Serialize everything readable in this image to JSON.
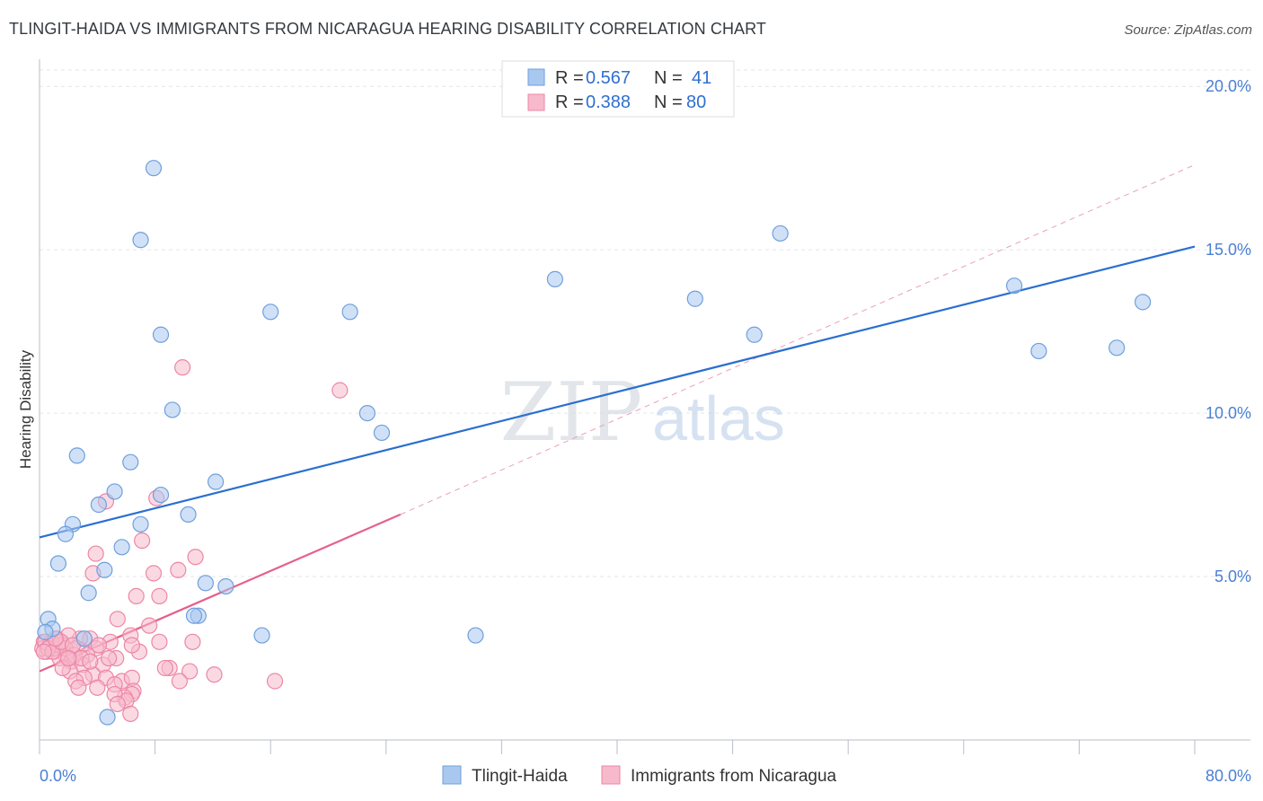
{
  "title": "TLINGIT-HAIDA VS IMMIGRANTS FROM NICARAGUA HEARING DISABILITY CORRELATION CHART",
  "source": "Source: ZipAtlas.com",
  "watermark": {
    "zip": "ZIP",
    "atlas": "atlas"
  },
  "chart_data": {
    "type": "scatter",
    "ylabel": "Hearing Disability",
    "xlabel": "",
    "xlim": [
      0,
      80
    ],
    "ylim": [
      0,
      20.5
    ],
    "x_tick_labels": {
      "left": "0.0%",
      "right": "80.0%"
    },
    "y_ticks": [
      {
        "value": 5,
        "label": "5.0%"
      },
      {
        "value": 10,
        "label": "10.0%"
      },
      {
        "value": 15,
        "label": "15.0%"
      },
      {
        "value": 20,
        "label": "20.0%"
      }
    ],
    "legend": {
      "rows": [
        {
          "r_label": "R = ",
          "r_value": "0.567",
          "n_label": "N = ",
          "n_value": "41"
        },
        {
          "r_label": "R = ",
          "r_value": "0.388",
          "n_label": "N = ",
          "n_value": "80"
        }
      ]
    },
    "series": [
      {
        "name": "Tlingit-Haida",
        "color": "#a9c8f0",
        "stroke": "#6f9fdc",
        "trend": {
          "x0": 0,
          "y0": 6.2,
          "x1": 80,
          "y1": 15.1,
          "color": "#2a6fd0"
        },
        "points": [
          [
            7.9,
            17.5
          ],
          [
            7.0,
            15.3
          ],
          [
            51.3,
            15.5
          ],
          [
            35.7,
            14.1
          ],
          [
            16.0,
            13.1
          ],
          [
            21.5,
            13.1
          ],
          [
            45.4,
            13.5
          ],
          [
            67.5,
            13.9
          ],
          [
            76.4,
            13.4
          ],
          [
            8.4,
            12.4
          ],
          [
            49.5,
            12.4
          ],
          [
            69.2,
            11.9
          ],
          [
            74.6,
            12.0
          ],
          [
            9.2,
            10.1
          ],
          [
            22.7,
            10.0
          ],
          [
            23.7,
            9.4
          ],
          [
            2.6,
            8.7
          ],
          [
            6.3,
            8.5
          ],
          [
            12.2,
            7.9
          ],
          [
            5.2,
            7.6
          ],
          [
            8.4,
            7.5
          ],
          [
            4.1,
            7.2
          ],
          [
            10.3,
            6.9
          ],
          [
            2.3,
            6.6
          ],
          [
            1.8,
            6.3
          ],
          [
            7.0,
            6.6
          ],
          [
            5.7,
            5.9
          ],
          [
            1.3,
            5.4
          ],
          [
            4.5,
            5.2
          ],
          [
            11.5,
            4.8
          ],
          [
            12.9,
            4.7
          ],
          [
            3.4,
            4.5
          ],
          [
            11.0,
            3.8
          ],
          [
            10.7,
            3.8
          ],
          [
            0.6,
            3.7
          ],
          [
            0.9,
            3.4
          ],
          [
            15.4,
            3.2
          ],
          [
            30.2,
            3.2
          ],
          [
            0.4,
            3.3
          ],
          [
            3.1,
            3.1
          ],
          [
            4.7,
            0.7
          ]
        ]
      },
      {
        "name": "Immigrants from Nicaragua",
        "color": "#f7b9cc",
        "stroke": "#ec87a6",
        "trend": {
          "x0": 0,
          "y0": 2.1,
          "x1": 25,
          "y1": 6.9,
          "color": "#e6608c"
        },
        "trend_ext": {
          "x0": 25,
          "y0": 6.9,
          "x1": 80,
          "y1": 17.6,
          "color": "#eaa0b8"
        },
        "points": [
          [
            9.9,
            11.4
          ],
          [
            20.8,
            10.7
          ],
          [
            4.6,
            7.3
          ],
          [
            8.1,
            7.4
          ],
          [
            7.1,
            6.1
          ],
          [
            3.9,
            5.7
          ],
          [
            10.8,
            5.6
          ],
          [
            9.6,
            5.2
          ],
          [
            3.7,
            5.1
          ],
          [
            7.9,
            5.1
          ],
          [
            8.3,
            4.4
          ],
          [
            6.7,
            4.4
          ],
          [
            5.4,
            3.7
          ],
          [
            7.6,
            3.5
          ],
          [
            3.5,
            3.1
          ],
          [
            6.3,
            3.2
          ],
          [
            2.8,
            3.1
          ],
          [
            1.2,
            3.1
          ],
          [
            2.0,
            3.2
          ],
          [
            4.9,
            3.0
          ],
          [
            0.3,
            3.0
          ],
          [
            0.7,
            2.9
          ],
          [
            1.6,
            2.9
          ],
          [
            2.6,
            2.8
          ],
          [
            3.9,
            2.8
          ],
          [
            0.5,
            2.7
          ],
          [
            1.0,
            2.7
          ],
          [
            1.8,
            2.6
          ],
          [
            3.3,
            2.6
          ],
          [
            0.2,
            2.8
          ],
          [
            1.4,
            2.5
          ],
          [
            2.2,
            2.4
          ],
          [
            5.3,
            2.5
          ],
          [
            6.9,
            2.7
          ],
          [
            4.4,
            2.3
          ],
          [
            3.0,
            2.3
          ],
          [
            2.1,
            2.1
          ],
          [
            1.6,
            2.2
          ],
          [
            3.7,
            2.0
          ],
          [
            10.6,
            3.0
          ],
          [
            8.3,
            3.0
          ],
          [
            6.4,
            2.9
          ],
          [
            9.0,
            2.2
          ],
          [
            8.7,
            2.2
          ],
          [
            12.1,
            2.0
          ],
          [
            10.4,
            2.1
          ],
          [
            4.6,
            1.9
          ],
          [
            5.7,
            1.8
          ],
          [
            3.1,
            1.9
          ],
          [
            2.5,
            1.8
          ],
          [
            4.0,
            1.6
          ],
          [
            2.7,
            1.6
          ],
          [
            6.4,
            1.9
          ],
          [
            5.2,
            1.7
          ],
          [
            6.5,
            1.5
          ],
          [
            6.4,
            1.4
          ],
          [
            5.9,
            1.3
          ],
          [
            6.0,
            1.2
          ],
          [
            5.2,
            1.4
          ],
          [
            5.4,
            1.1
          ],
          [
            6.3,
            0.8
          ],
          [
            9.7,
            1.8
          ],
          [
            16.3,
            1.8
          ],
          [
            1.0,
            2.8
          ],
          [
            1.3,
            2.9
          ],
          [
            0.8,
            3.0
          ],
          [
            0.4,
            3.0
          ],
          [
            0.6,
            2.8
          ],
          [
            1.8,
            2.8
          ],
          [
            2.4,
            2.6
          ],
          [
            2.9,
            2.5
          ],
          [
            3.5,
            2.4
          ],
          [
            4.1,
            2.9
          ],
          [
            4.8,
            2.5
          ],
          [
            0.9,
            2.7
          ],
          [
            1.5,
            3.0
          ],
          [
            2.3,
            2.9
          ],
          [
            0.3,
            2.7
          ],
          [
            1.1,
            3.1
          ],
          [
            2.0,
            2.5
          ]
        ]
      }
    ]
  }
}
